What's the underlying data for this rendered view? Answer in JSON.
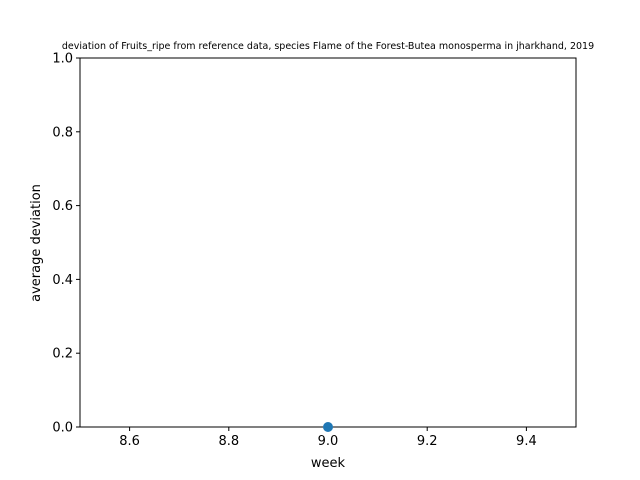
{
  "chart_data": {
    "type": "scatter",
    "title": "deviation of Fruits_ripe from reference data, species Flame of the Forest-Butea monosperma in jharkhand, 2019",
    "xlabel": "week",
    "ylabel": "average deviation",
    "xlim": [
      8.5,
      9.5
    ],
    "ylim": [
      0,
      1
    ],
    "xticks": [
      8.6,
      8.8,
      9.0,
      9.2,
      9.4
    ],
    "xtick_labels": [
      "8.6",
      "8.8",
      "9.0",
      "9.2",
      "9.4"
    ],
    "yticks": [
      0,
      0.2,
      0.4,
      0.6,
      0.8,
      1.0
    ],
    "ytick_labels": [
      "0.0",
      "0.2",
      "0.4",
      "0.6",
      "0.8",
      "1.0"
    ],
    "grid": false,
    "series": [
      {
        "x": [
          9.0
        ],
        "y": [
          0.0
        ],
        "color": "#1f77b4"
      }
    ]
  }
}
